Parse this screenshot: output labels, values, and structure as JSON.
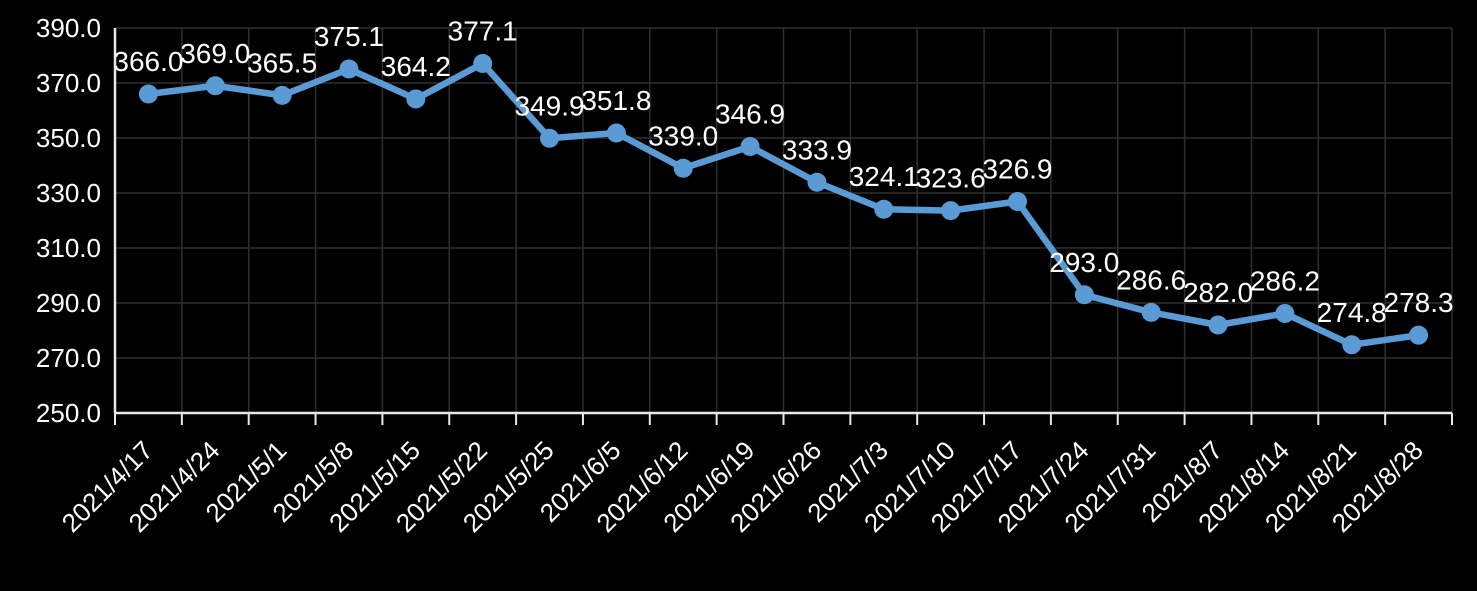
{
  "chart_data": {
    "type": "line",
    "title": "",
    "xlabel": "",
    "ylabel": "",
    "categories": [
      "2021/4/17",
      "2021/4/24",
      "2021/5/1",
      "2021/5/8",
      "2021/5/15",
      "2021/5/22",
      "2021/5/25",
      "2021/6/5",
      "2021/6/12",
      "2021/6/19",
      "2021/6/26",
      "2021/7/3",
      "2021/7/10",
      "2021/7/17",
      "2021/7/24",
      "2021/7/31",
      "2021/8/7",
      "2021/8/14",
      "2021/8/21",
      "2021/8/28"
    ],
    "values": [
      366.0,
      369.0,
      365.5,
      375.1,
      364.2,
      377.1,
      349.9,
      351.8,
      339.0,
      346.9,
      333.9,
      324.1,
      323.6,
      326.9,
      293.0,
      286.6,
      282.0,
      286.2,
      274.8,
      278.3
    ],
    "data_labels": [
      "366.0",
      "369.0",
      "365.5",
      "375.1",
      "364.2",
      "377.1",
      "349.9",
      "351.8",
      "339.0",
      "346.9",
      "333.9",
      "324.1",
      "323.6",
      "326.9",
      "293.0",
      "286.6",
      "282.0",
      "286.2",
      "274.8",
      "278.3"
    ],
    "data_label_position": "above",
    "marker": "circle",
    "ylim": [
      250,
      390
    ],
    "y_tick_step": 20,
    "y_ticks": [
      250,
      270,
      290,
      310,
      330,
      350,
      370,
      390
    ],
    "y_tick_labels": [
      "250.0",
      "270.0",
      "290.0",
      "310.0",
      "330.0",
      "350.0",
      "370.0",
      "390.0"
    ],
    "x_tick_rotation_deg": -45,
    "grid": true,
    "legend_position": "none",
    "colors": {
      "background": "#000000",
      "line": "#5B9BD5",
      "marker_fill": "#5B9BD5",
      "gridline": "#2F2F2F",
      "axis_line": "#E8E8E8",
      "label_text": "#FFFFFF"
    }
  }
}
